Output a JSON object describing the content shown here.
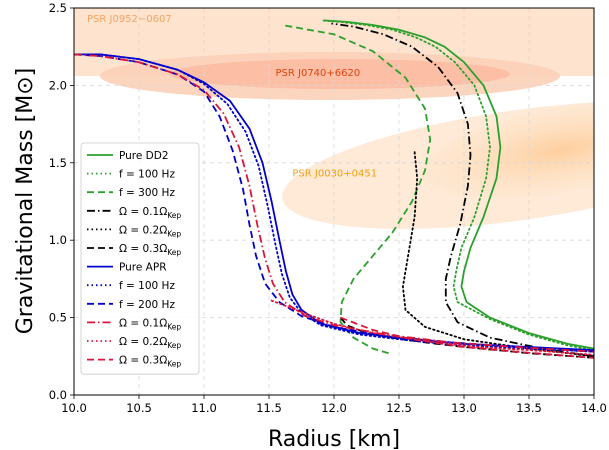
{
  "chart_data": {
    "type": "line",
    "xlabel": "Radius [km]",
    "ylabel": "Gravitational Mass [M⊙]",
    "xlim": [
      10.0,
      14.0
    ],
    "ylim": [
      0.0,
      2.5
    ],
    "xticks": [
      "10.0",
      "10.5",
      "11.0",
      "11.5",
      "12.0",
      "12.5",
      "13.0",
      "13.5",
      "14.0"
    ],
    "yticks": [
      "0.0",
      "0.5",
      "1.0",
      "1.5",
      "2.0",
      "2.5"
    ],
    "grid": true,
    "legend_position": "center-left",
    "annotations": [
      {
        "text": "PSR J0952−0607",
        "x": 10.1,
        "y": 2.41,
        "color": "#f4a460"
      },
      {
        "text": "PSR J0740+6620",
        "x": 11.55,
        "y": 2.06,
        "color": "#e0440e"
      },
      {
        "text": "PSR J0030+0451",
        "x": 11.68,
        "y": 1.41,
        "color": "#f0a010"
      }
    ],
    "series": [
      {
        "name": "Pure DD2",
        "color": "#2ca02c",
        "dash": "solid",
        "x": [
          14.0,
          13.8,
          13.5,
          13.2,
          13.02,
          12.98,
          13.0,
          13.05,
          13.15,
          13.25,
          13.28,
          13.25,
          13.15,
          13.0,
          12.85,
          12.7,
          12.5,
          12.3,
          12.1,
          11.92
        ],
        "y": [
          0.3,
          0.33,
          0.4,
          0.5,
          0.6,
          0.7,
          0.8,
          0.95,
          1.15,
          1.4,
          1.6,
          1.8,
          2.0,
          2.15,
          2.25,
          2.31,
          2.36,
          2.39,
          2.41,
          2.42
        ]
      },
      {
        "name": "f = 100 Hz",
        "color": "#2ca02c",
        "dash": "dotted",
        "x": [
          14.0,
          13.8,
          13.5,
          13.2,
          12.95,
          12.92,
          12.94,
          12.98,
          13.08,
          13.17,
          13.2,
          13.17,
          13.08,
          12.93,
          12.78,
          12.63,
          12.45,
          12.25,
          12.05,
          11.9
        ],
        "y": [
          0.29,
          0.32,
          0.39,
          0.49,
          0.6,
          0.7,
          0.8,
          0.95,
          1.15,
          1.4,
          1.6,
          1.8,
          2.0,
          2.15,
          2.25,
          2.31,
          2.36,
          2.39,
          2.41,
          2.42
        ]
      },
      {
        "name": "f = 300 Hz",
        "color": "#2ca02c",
        "dash": "dashed",
        "x": [
          12.42,
          12.3,
          12.15,
          12.05,
          12.06,
          12.15,
          12.3,
          12.45,
          12.6,
          12.7,
          12.74,
          12.7,
          12.55,
          12.3,
          12.0,
          11.6
        ],
        "y": [
          0.27,
          0.3,
          0.37,
          0.47,
          0.6,
          0.75,
          0.9,
          1.05,
          1.25,
          1.45,
          1.65,
          1.85,
          2.05,
          2.22,
          2.33,
          2.39
        ]
      },
      {
        "name": "Ω = 0.1Ω_Kep",
        "color": "#000000",
        "dash": "dashdot",
        "x": [
          14.0,
          13.6,
          13.2,
          12.95,
          12.86,
          12.86,
          12.9,
          12.97,
          13.03,
          13.05,
          13.03,
          12.95,
          12.8,
          12.6,
          12.38,
          12.15,
          11.98
        ],
        "y": [
          0.25,
          0.3,
          0.37,
          0.47,
          0.6,
          0.75,
          0.9,
          1.1,
          1.35,
          1.55,
          1.75,
          1.95,
          2.12,
          2.25,
          2.33,
          2.38,
          2.4
        ]
      },
      {
        "name": "Ω = 0.2Ω_Kep",
        "color": "#000000",
        "dash": "dotted",
        "x": [
          14.0,
          13.5,
          13.0,
          12.7,
          12.55,
          12.53,
          12.57,
          12.62,
          12.64,
          12.62
        ],
        "y": [
          0.25,
          0.3,
          0.36,
          0.44,
          0.55,
          0.7,
          0.9,
          1.15,
          1.4,
          1.57
        ]
      },
      {
        "name": "Ω = 0.3Ω_Kep",
        "color": "#000000",
        "dash": "dashed",
        "x": [
          14.0,
          13.5,
          13.0,
          12.7,
          12.45,
          12.25,
          12.1,
          12.03
        ],
        "y": [
          0.24,
          0.27,
          0.31,
          0.34,
          0.37,
          0.4,
          0.45,
          0.52
        ]
      },
      {
        "name": "Pure APR",
        "color": "#0000cd",
        "dash": "solid",
        "x": [
          10.0,
          10.2,
          10.5,
          10.8,
          11.0,
          11.2,
          11.35,
          11.45,
          11.52,
          11.58,
          11.63,
          11.68,
          11.75,
          11.9,
          12.2,
          12.6,
          13.0,
          13.5,
          14.0
        ],
        "y": [
          2.2,
          2.2,
          2.17,
          2.1,
          2.02,
          1.9,
          1.72,
          1.5,
          1.25,
          1.0,
          0.8,
          0.65,
          0.55,
          0.46,
          0.4,
          0.36,
          0.33,
          0.31,
          0.29
        ]
      },
      {
        "name": "f = 100 Hz",
        "color": "#0000cd",
        "dash": "dotted",
        "x": [
          10.0,
          10.2,
          10.5,
          10.8,
          11.0,
          11.18,
          11.32,
          11.42,
          11.49,
          11.55,
          11.6,
          11.66,
          11.75,
          11.9,
          12.2,
          12.6,
          13.0,
          13.5,
          14.0
        ],
        "y": [
          2.2,
          2.2,
          2.17,
          2.1,
          2.01,
          1.88,
          1.7,
          1.48,
          1.22,
          0.97,
          0.78,
          0.63,
          0.53,
          0.45,
          0.39,
          0.35,
          0.32,
          0.3,
          0.28
        ]
      },
      {
        "name": "f = 200 Hz",
        "color": "#0000cd",
        "dash": "dashed",
        "x": [
          10.0,
          10.2,
          10.5,
          10.8,
          11.0,
          11.12,
          11.22,
          11.3,
          11.35,
          11.4,
          11.47,
          11.58,
          11.75,
          12.0,
          12.4,
          12.9,
          13.4,
          14.0
        ],
        "y": [
          2.2,
          2.19,
          2.15,
          2.07,
          1.96,
          1.8,
          1.58,
          1.33,
          1.1,
          0.9,
          0.72,
          0.6,
          0.51,
          0.44,
          0.38,
          0.34,
          0.31,
          0.28
        ]
      },
      {
        "name": "Ω = 0.1Ω_Kep",
        "color": "#dc143c",
        "dash": "dashdot",
        "x": [
          10.0,
          10.2,
          10.5,
          10.8,
          11.0,
          11.15,
          11.27,
          11.35,
          11.41,
          11.47,
          11.53,
          11.62,
          11.78,
          12.0,
          12.4,
          12.9,
          13.4,
          14.0
        ],
        "y": [
          2.2,
          2.19,
          2.15,
          2.07,
          1.97,
          1.82,
          1.6,
          1.35,
          1.1,
          0.88,
          0.72,
          0.6,
          0.51,
          0.45,
          0.39,
          0.34,
          0.31,
          0.28
        ]
      },
      {
        "name": "Ω = 0.2Ω_Kep",
        "color": "#dc143c",
        "dash": "dotted",
        "x": [
          11.52,
          11.8,
          12.0,
          12.3,
          12.7,
          13.1,
          13.5,
          14.0
        ],
        "y": [
          0.61,
          0.52,
          0.46,
          0.4,
          0.35,
          0.31,
          0.29,
          0.26
        ]
      },
      {
        "name": "Ω = 0.3Ω_Kep",
        "color": "#dc143c",
        "dash": "dashed",
        "x": [
          12.05,
          12.3,
          12.6,
          13.0,
          13.4,
          13.7,
          14.0
        ],
        "y": [
          0.5,
          0.42,
          0.36,
          0.31,
          0.28,
          0.26,
          0.24
        ]
      }
    ]
  }
}
